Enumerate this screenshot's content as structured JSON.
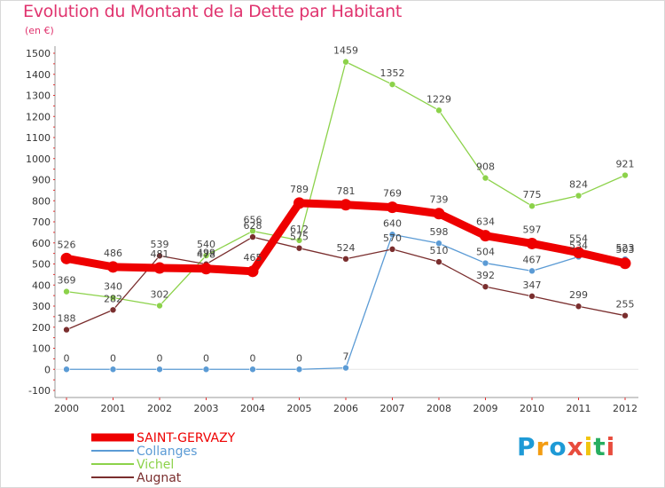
{
  "chart_data": {
    "type": "line",
    "title": "Evolution du Montant de la Dette par Habitant",
    "subtitle": "(en €)",
    "x": [
      "2000",
      "2001",
      "2002",
      "2003",
      "2004",
      "2005",
      "2006",
      "2007",
      "2008",
      "2009",
      "2010",
      "2011",
      "2012"
    ],
    "ylim": [
      -100,
      1500
    ],
    "yticks": [
      -100,
      0,
      100,
      200,
      300,
      400,
      500,
      600,
      700,
      800,
      900,
      1000,
      1100,
      1200,
      1300,
      1400,
      1500
    ],
    "grid": false,
    "legend_position": "bottom-left",
    "series": [
      {
        "name": "SAINT-GERVAZY",
        "color": "#ee0000",
        "values": [
          526,
          486,
          481,
          478,
          465,
          789,
          781,
          769,
          739,
          634,
          597,
          554,
          503
        ]
      },
      {
        "name": "Collanges",
        "color": "#5b9bd5",
        "values": [
          0,
          0,
          0,
          0,
          0,
          0,
          7,
          640,
          598,
          504,
          467,
          534,
          523
        ]
      },
      {
        "name": "Vichel",
        "color": "#8cd24a",
        "values": [
          369,
          340,
          302,
          540,
          656,
          612,
          1459,
          1352,
          1229,
          908,
          775,
          824,
          921
        ]
      },
      {
        "name": "Augnat",
        "color": "#7a2e2e",
        "values": [
          188,
          282,
          539,
          499,
          628,
          575,
          524,
          570,
          510,
          392,
          347,
          299,
          255
        ]
      }
    ]
  },
  "logo": {
    "letters": [
      "P",
      "r",
      "o",
      "x",
      "i",
      "t",
      "i"
    ],
    "colors": [
      "#1e9ad6",
      "#f39c12",
      "#1e9ad6",
      "#e84c3d",
      "#f1c40f",
      "#27ae60",
      "#e84c3d"
    ]
  }
}
